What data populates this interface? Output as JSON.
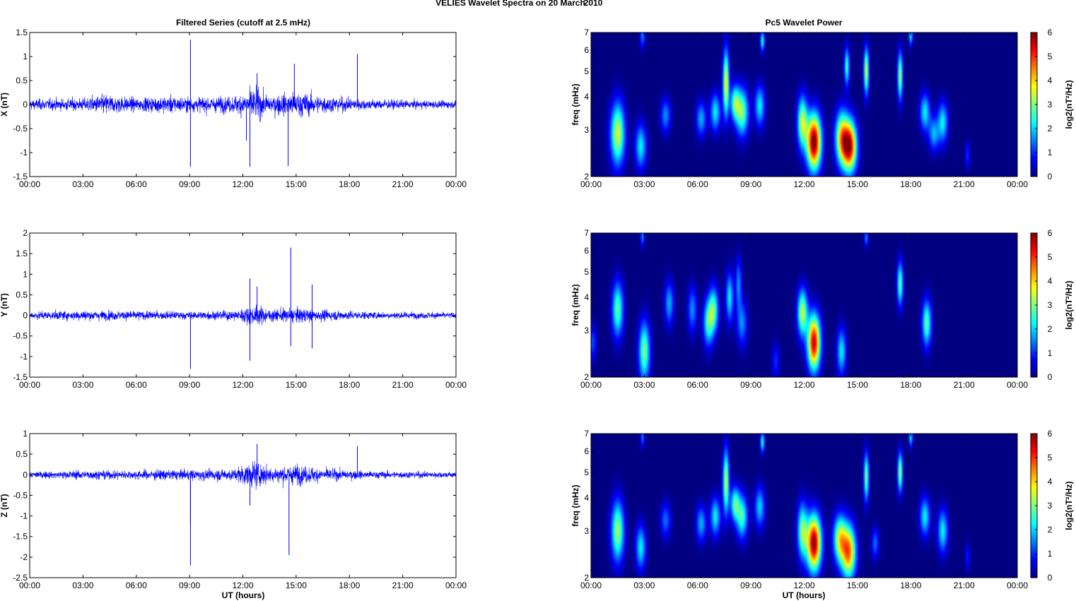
{
  "figure": {
    "suptitle_left": "VELIES Wavelet Spectra on 20 March",
    "suptitle_right": "2010",
    "left_title": "Filtered Series (cutoff at 2.5 mHz)",
    "right_title": "Pc5 Wavelet Power",
    "xlabel": "UT (hours)",
    "colorbar_label": "log2(nT²/Hz)",
    "colors": {
      "trace": "#0000ff",
      "background_power": "#00008f"
    }
  },
  "chart_data": [
    {
      "type": "line",
      "name": "filtered-x",
      "ylabel": "X (nT)",
      "xlim": [
        0,
        24
      ],
      "ylim": [
        -1.5,
        1.5
      ],
      "x_ticks": [
        "00:00",
        "03:00",
        "06:00",
        "09:00",
        "12:00",
        "15:00",
        "18:00",
        "21:00",
        "00:00"
      ],
      "y_ticks": [
        "1.5",
        "1",
        "0.5",
        "0",
        "-0.5",
        "-1",
        "-1.5"
      ],
      "noise_envelope": [
        [
          0,
          0.18
        ],
        [
          3,
          0.22
        ],
        [
          4.3,
          0.35
        ],
        [
          6,
          0.22
        ],
        [
          7.8,
          0.3
        ],
        [
          9,
          0.25
        ],
        [
          11.5,
          0.28
        ],
        [
          12.7,
          0.55
        ],
        [
          13.5,
          0.3
        ],
        [
          15,
          0.45
        ],
        [
          16.5,
          0.3
        ],
        [
          19,
          0.18
        ],
        [
          21,
          0.15
        ],
        [
          24,
          0.12
        ]
      ],
      "spikes": [
        [
          9.05,
          1.35
        ],
        [
          9.05,
          -1.3
        ],
        [
          12.2,
          -0.75
        ],
        [
          12.4,
          -1.3
        ],
        [
          12.8,
          0.65
        ],
        [
          14.55,
          -1.28
        ],
        [
          14.9,
          0.85
        ],
        [
          18.45,
          1.05
        ]
      ]
    },
    {
      "type": "line",
      "name": "filtered-y",
      "ylabel": "Y (nT)",
      "xlim": [
        0,
        24
      ],
      "ylim": [
        -1.5,
        2
      ],
      "x_ticks": [
        "00:00",
        "03:00",
        "06:00",
        "09:00",
        "12:00",
        "15:00",
        "18:00",
        "21:00",
        "00:00"
      ],
      "y_ticks": [
        "2",
        "1.5",
        "1",
        "0.5",
        "0",
        "-0.5",
        "-1",
        "-1.5"
      ],
      "noise_envelope": [
        [
          0,
          0.15
        ],
        [
          3,
          0.2
        ],
        [
          6,
          0.18
        ],
        [
          9,
          0.15
        ],
        [
          11.5,
          0.2
        ],
        [
          12.7,
          0.4
        ],
        [
          13.5,
          0.25
        ],
        [
          15,
          0.3
        ],
        [
          16.5,
          0.22
        ],
        [
          19,
          0.15
        ],
        [
          24,
          0.12
        ]
      ],
      "spikes": [
        [
          9.05,
          -1.3
        ],
        [
          12.4,
          0.9
        ],
        [
          12.4,
          -1.1
        ],
        [
          12.8,
          0.7
        ],
        [
          14.7,
          1.65
        ],
        [
          14.7,
          -0.75
        ],
        [
          15.9,
          0.75
        ],
        [
          15.9,
          -0.8
        ]
      ]
    },
    {
      "type": "line",
      "name": "filtered-z",
      "ylabel": "Z (nT)",
      "xlim": [
        0,
        24
      ],
      "ylim": [
        -2.5,
        1
      ],
      "x_ticks": [
        "00:00",
        "03:00",
        "06:00",
        "09:00",
        "12:00",
        "15:00",
        "18:00",
        "21:00",
        "00:00"
      ],
      "y_ticks": [
        "1",
        "0.5",
        "0",
        "-0.5",
        "-1",
        "-1.5",
        "-2",
        "-2.5"
      ],
      "noise_envelope": [
        [
          0,
          0.12
        ],
        [
          3,
          0.18
        ],
        [
          6,
          0.18
        ],
        [
          8,
          0.22
        ],
        [
          9,
          0.2
        ],
        [
          11.5,
          0.25
        ],
        [
          12.7,
          0.55
        ],
        [
          13.5,
          0.3
        ],
        [
          15,
          0.4
        ],
        [
          16.5,
          0.25
        ],
        [
          19,
          0.15
        ],
        [
          24,
          0.12
        ]
      ],
      "spikes": [
        [
          9.05,
          -2.2
        ],
        [
          9.05,
          -1.2
        ],
        [
          12.4,
          -0.75
        ],
        [
          12.8,
          0.75
        ],
        [
          14.6,
          -1.95
        ],
        [
          18.45,
          0.7
        ]
      ]
    },
    {
      "type": "heatmap",
      "name": "power-x",
      "ylabel": "freq (mHz)",
      "xlim": [
        0,
        24
      ],
      "ylim": [
        2,
        7
      ],
      "y_scale": "log",
      "clim": [
        0,
        6
      ],
      "x_ticks": [
        "00:00",
        "03:00",
        "06:00",
        "09:00",
        "12:00",
        "15:00",
        "18:00",
        "21:00",
        "00:00"
      ],
      "y_ticks": [
        "7",
        "6",
        "5",
        "4",
        "3",
        "2"
      ],
      "c_ticks": [
        "6",
        "5",
        "4",
        "3",
        "2",
        "1",
        "0"
      ],
      "blobs": [
        [
          1.5,
          2.9,
          0.28,
          0.55,
          3.5
        ],
        [
          2.8,
          2.6,
          0.22,
          0.35,
          2.2
        ],
        [
          4.2,
          3.4,
          0.2,
          0.35,
          1.6
        ],
        [
          2.9,
          6.8,
          0.1,
          0.5,
          1.5
        ],
        [
          6.2,
          3.3,
          0.2,
          0.35,
          1.8
        ],
        [
          7,
          3.5,
          0.2,
          0.4,
          2.2
        ],
        [
          7.6,
          4.5,
          0.12,
          0.9,
          3.8
        ],
        [
          8.1,
          3.8,
          0.18,
          0.4,
          2.6
        ],
        [
          8.5,
          3.5,
          0.25,
          0.5,
          3
        ],
        [
          9.5,
          3.7,
          0.2,
          0.45,
          2.2
        ],
        [
          9.65,
          6.5,
          0.08,
          0.4,
          2.5
        ],
        [
          11.9,
          3.2,
          0.2,
          0.5,
          3.4
        ],
        [
          12.55,
          2.7,
          0.28,
          0.45,
          6.2
        ],
        [
          14.1,
          2.8,
          0.25,
          0.45,
          3.6
        ],
        [
          14.55,
          2.6,
          0.28,
          0.4,
          5.6
        ],
        [
          14.4,
          5.2,
          0.1,
          0.6,
          2.6
        ],
        [
          15.5,
          5,
          0.1,
          0.7,
          3.5
        ],
        [
          17.4,
          4.8,
          0.1,
          0.7,
          3.2
        ],
        [
          18.0,
          6.8,
          0.08,
          0.4,
          2.2
        ],
        [
          18.8,
          3.5,
          0.2,
          0.4,
          2.2
        ],
        [
          19.8,
          3.2,
          0.2,
          0.4,
          2.2
        ],
        [
          19.3,
          2.9,
          0.2,
          0.3,
          1.8
        ],
        [
          21.2,
          2.4,
          0.1,
          0.2,
          1.0
        ]
      ]
    },
    {
      "type": "heatmap",
      "name": "power-y",
      "ylabel": "freq (mHz)",
      "xlim": [
        0,
        24
      ],
      "ylim": [
        2,
        7
      ],
      "y_scale": "log",
      "clim": [
        0,
        6
      ],
      "x_ticks": [
        "00:00",
        "03:00",
        "06:00",
        "09:00",
        "12:00",
        "15:00",
        "18:00",
        "21:00",
        "00:00"
      ],
      "y_ticks": [
        "7",
        "6",
        "5",
        "4",
        "3",
        "2"
      ],
      "c_ticks": [
        "6",
        "5",
        "4",
        "3",
        "2",
        "1",
        "0"
      ],
      "blobs": [
        [
          1.5,
          3.6,
          0.22,
          0.6,
          2.8
        ],
        [
          3.0,
          2.5,
          0.22,
          0.45,
          3
        ],
        [
          2.9,
          6.8,
          0.08,
          0.4,
          1.6
        ],
        [
          4.4,
          3.8,
          0.18,
          0.5,
          1.8
        ],
        [
          5.7,
          3.6,
          0.18,
          0.5,
          1.6
        ],
        [
          6.6,
          3.2,
          0.2,
          0.45,
          2.4
        ],
        [
          6.9,
          3.6,
          0.2,
          0.5,
          2.6
        ],
        [
          7.8,
          4.0,
          0.15,
          0.6,
          2.2
        ],
        [
          8.5,
          3.2,
          0.2,
          0.45,
          1.6
        ],
        [
          8.3,
          4.5,
          0.12,
          0.7,
          1.6
        ],
        [
          11.9,
          3.5,
          0.2,
          0.5,
          3.4
        ],
        [
          12.55,
          2.7,
          0.25,
          0.45,
          5.6
        ],
        [
          14.1,
          2.5,
          0.18,
          0.35,
          2.2
        ],
        [
          15.5,
          6.7,
          0.08,
          0.35,
          1.5
        ],
        [
          17.4,
          4.5,
          0.12,
          0.6,
          2.8
        ],
        [
          18.9,
          3.2,
          0.18,
          0.45,
          2.8
        ],
        [
          0.1,
          2.7,
          0.15,
          0.3,
          1.2
        ],
        [
          10.4,
          2.3,
          0.15,
          0.25,
          1.0
        ]
      ]
    },
    {
      "type": "heatmap",
      "name": "power-z",
      "ylabel": "freq (mHz)",
      "xlim": [
        0,
        24
      ],
      "ylim": [
        2,
        7
      ],
      "y_scale": "log",
      "clim": [
        0,
        6
      ],
      "x_ticks": [
        "00:00",
        "03:00",
        "06:00",
        "09:00",
        "12:00",
        "15:00",
        "18:00",
        "21:00",
        "00:00"
      ],
      "y_ticks": [
        "7",
        "6",
        "5",
        "4",
        "3",
        "2"
      ],
      "c_ticks": [
        "6",
        "5",
        "4",
        "3",
        "2",
        "1",
        "0"
      ],
      "blobs": [
        [
          1.5,
          3.0,
          0.25,
          0.55,
          3.2
        ],
        [
          2.8,
          2.6,
          0.2,
          0.35,
          2.2
        ],
        [
          4.2,
          3.3,
          0.2,
          0.35,
          1.4
        ],
        [
          2.9,
          6.8,
          0.08,
          0.4,
          1.5
        ],
        [
          6.2,
          3.2,
          0.2,
          0.35,
          1.8
        ],
        [
          7,
          3.4,
          0.2,
          0.4,
          2.2
        ],
        [
          7.6,
          4.6,
          0.12,
          0.9,
          3.4
        ],
        [
          8.1,
          3.8,
          0.18,
          0.4,
          2.6
        ],
        [
          8.5,
          3.4,
          0.22,
          0.45,
          2.6
        ],
        [
          9.65,
          6.5,
          0.08,
          0.4,
          2.5
        ],
        [
          9.5,
          3.7,
          0.2,
          0.45,
          2.0
        ],
        [
          11.9,
          3.0,
          0.2,
          0.5,
          3.0
        ],
        [
          12.55,
          2.7,
          0.28,
          0.45,
          6.0
        ],
        [
          14.0,
          2.8,
          0.25,
          0.4,
          3.4
        ],
        [
          14.5,
          2.5,
          0.28,
          0.4,
          4.6
        ],
        [
          15.5,
          4.8,
          0.1,
          0.7,
          3.0
        ],
        [
          16.0,
          2.7,
          0.15,
          0.25,
          1.4
        ],
        [
          17.4,
          5.0,
          0.1,
          0.6,
          3.2
        ],
        [
          18.0,
          6.8,
          0.08,
          0.4,
          2.2
        ],
        [
          18.8,
          3.4,
          0.2,
          0.4,
          2.2
        ],
        [
          19.8,
          3.0,
          0.2,
          0.4,
          2.2
        ],
        [
          21.2,
          2.4,
          0.1,
          0.2,
          0.9
        ]
      ]
    }
  ]
}
